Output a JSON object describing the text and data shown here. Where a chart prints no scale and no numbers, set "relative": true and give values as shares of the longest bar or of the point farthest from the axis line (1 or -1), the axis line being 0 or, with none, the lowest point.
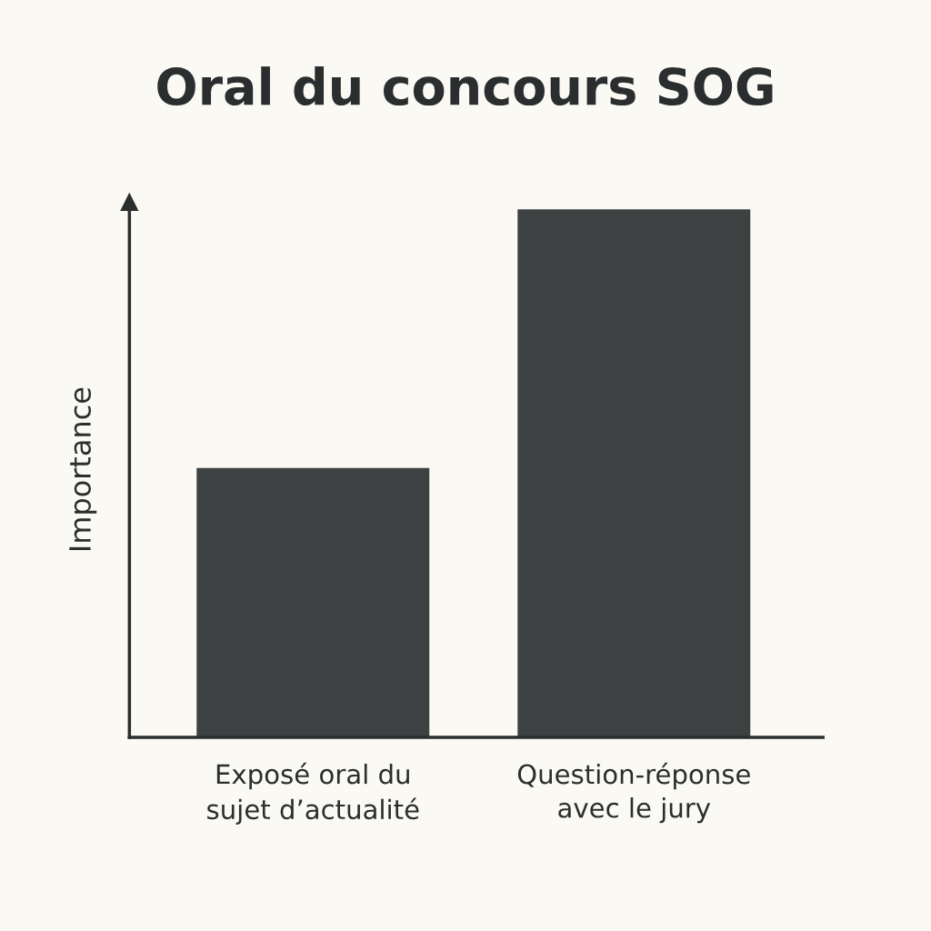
{
  "chart_data": {
    "type": "bar",
    "title": "Oral du concours SOG",
    "ylabel": "Importance",
    "categories": [
      "Exposé oral du\nsujet d’actualité",
      "Question-réponse\navec le jury"
    ],
    "values": [
      0.51,
      1
    ],
    "color": "#3d4142",
    "relative": true,
    "tick_labels": "x"
  }
}
